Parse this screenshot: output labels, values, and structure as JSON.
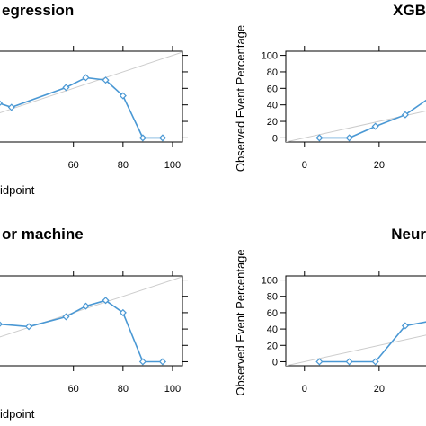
{
  "chart_data": [
    {
      "type": "line",
      "title": "egression",
      "xlabel": "idpoint",
      "ylabel": "",
      "xlim": [
        30,
        104
      ],
      "ylim": [
        -5,
        105
      ],
      "xticks": [
        "60",
        "80",
        "100"
      ],
      "yticks": [],
      "grid": false,
      "reference_line": [
        [
          30,
          30
        ],
        [
          104,
          104
        ]
      ],
      "series": [
        {
          "x": [
            30,
            35,
            57,
            65,
            73,
            80,
            88,
            96
          ],
          "y": [
            42,
            37,
            61,
            73,
            70,
            51,
            0,
            0
          ]
        }
      ]
    },
    {
      "type": "line",
      "title": "XGB",
      "xlabel": "",
      "ylabel": "Observed Event Percentage",
      "xlim": [
        -5,
        34
      ],
      "ylim": [
        -5,
        105
      ],
      "xticks": [
        "0",
        "20"
      ],
      "yticks": [
        "0",
        "20",
        "40",
        "60",
        "80",
        "100"
      ],
      "grid": false,
      "reference_line": [
        [
          -5,
          -5
        ],
        [
          34,
          34
        ]
      ],
      "series": [
        {
          "x": [
            4,
            12,
            19,
            27,
            34
          ],
          "y": [
            0,
            0,
            14,
            28,
            50
          ]
        }
      ]
    },
    {
      "type": "line",
      "title": "or machine",
      "xlabel": "idpoint",
      "ylabel": "",
      "xlim": [
        30,
        104
      ],
      "ylim": [
        -5,
        105
      ],
      "xticks": [
        "60",
        "80",
        "100"
      ],
      "yticks": [],
      "grid": false,
      "reference_line": [
        [
          30,
          30
        ],
        [
          104,
          104
        ]
      ],
      "series": [
        {
          "x": [
            30,
            42,
            57,
            65,
            73,
            80,
            88,
            96
          ],
          "y": [
            46,
            43,
            55,
            68,
            75,
            60,
            0,
            0
          ]
        }
      ]
    },
    {
      "type": "line",
      "title": "Neur",
      "xlabel": "",
      "ylabel": "Observed Event Percentage",
      "xlim": [
        -5,
        34
      ],
      "ylim": [
        -5,
        105
      ],
      "xticks": [
        "0",
        "20"
      ],
      "yticks": [
        "0",
        "20",
        "40",
        "60",
        "80",
        "100"
      ],
      "grid": false,
      "reference_line": [
        [
          -5,
          -5
        ],
        [
          34,
          34
        ]
      ],
      "series": [
        {
          "x": [
            4,
            12,
            19,
            27,
            34
          ],
          "y": [
            0,
            0,
            0,
            44,
            50
          ]
        }
      ]
    }
  ],
  "colors": {
    "series": "#4a98d4",
    "reference": "#cccccc",
    "axis": "#000000"
  }
}
